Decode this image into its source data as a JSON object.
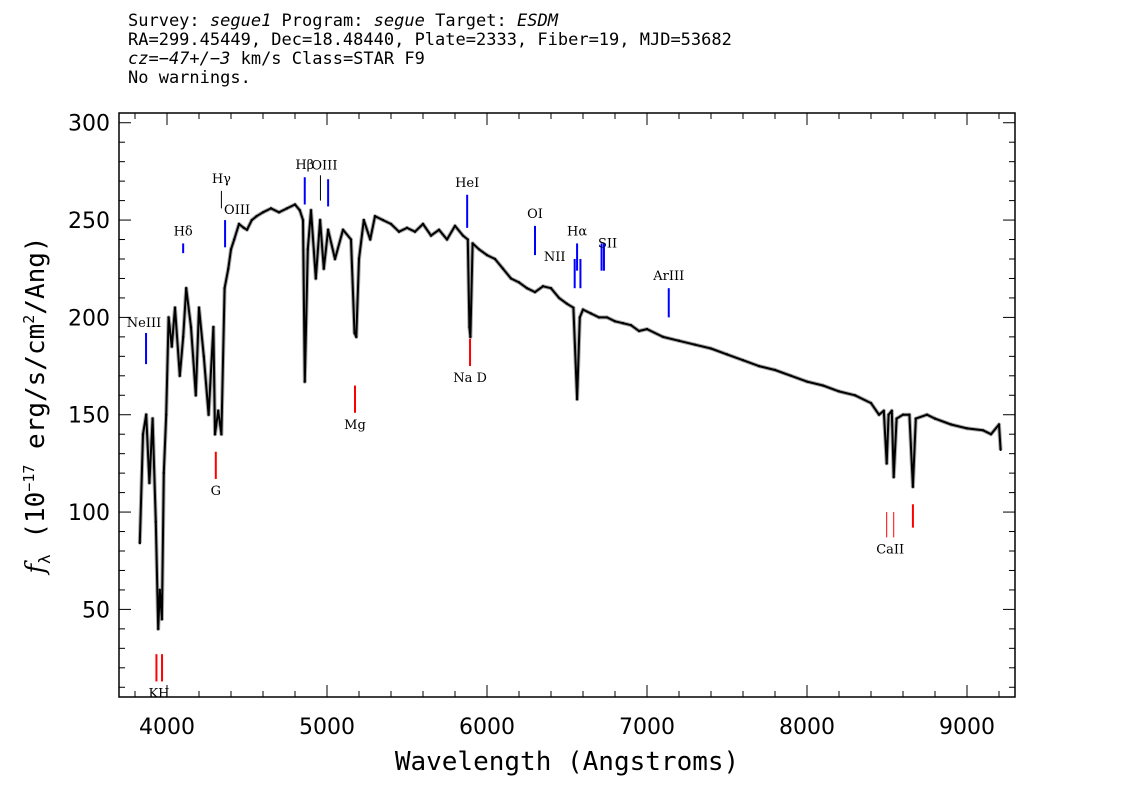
{
  "header": {
    "line1": {
      "survey_label": "Survey: ",
      "survey": "segue1",
      "program_label": " Program: ",
      "program": "segue",
      "target_label": " Target: ",
      "target": "ESDM"
    },
    "line2": "RA=299.45449, Dec=18.48440, Plate=2333, Fiber=19, MJD=53682",
    "line3": {
      "redshift": "cz=−47+/−3",
      "rest": " km/s Class=STAR F9"
    },
    "line4": "No warnings."
  },
  "chart_data": {
    "type": "line",
    "xlabel": "Wavelength (Angstroms)",
    "ylabel": "f_λ (10^-17 erg/s/cm^2/Ang)",
    "xlim": [
      3700,
      9300
    ],
    "ylim": [
      5,
      305
    ],
    "xticks": [
      4000,
      5000,
      6000,
      7000,
      8000,
      9000
    ],
    "yticks": [
      50,
      100,
      150,
      200,
      250,
      300
    ],
    "grid": false,
    "series": [
      {
        "color": "#000000",
        "x": [
          3830,
          3850,
          3870,
          3890,
          3910,
          3930,
          3945,
          3955,
          3968,
          3980,
          3995,
          4010,
          4030,
          4050,
          4080,
          4101,
          4120,
          4150,
          4180,
          4200,
          4230,
          4260,
          4290,
          4300,
          4320,
          4340,
          4360,
          4383,
          4400,
          4420,
          4450,
          4480,
          4500,
          4530,
          4560,
          4600,
          4650,
          4700,
          4750,
          4800,
          4830,
          4850,
          4861,
          4880,
          4900,
          4930,
          4957,
          4980,
          5007,
          5050,
          5100,
          5150,
          5172,
          5183,
          5200,
          5230,
          5270,
          5300,
          5350,
          5400,
          5450,
          5500,
          5550,
          5600,
          5650,
          5700,
          5750,
          5800,
          5850,
          5880,
          5890,
          5896,
          5910,
          5950,
          6000,
          6050,
          6100,
          6150,
          6200,
          6250,
          6300,
          6350,
          6400,
          6450,
          6500,
          6540,
          6563,
          6580,
          6600,
          6650,
          6700,
          6750,
          6800,
          6850,
          6900,
          6950,
          7000,
          7100,
          7200,
          7300,
          7400,
          7500,
          7600,
          7700,
          7800,
          7900,
          8000,
          8100,
          8200,
          8300,
          8400,
          8450,
          8480,
          8498,
          8510,
          8530,
          8542,
          8560,
          8600,
          8640,
          8662,
          8680,
          8750,
          8800,
          8900,
          9000,
          9100,
          9150,
          9200,
          9210
        ],
        "values": [
          84,
          140,
          150,
          115,
          148,
          95,
          40,
          60,
          45,
          120,
          150,
          200,
          185,
          205,
          170,
          190,
          215,
          195,
          160,
          205,
          180,
          150,
          195,
          140,
          152,
          140,
          215,
          225,
          235,
          240,
          248,
          246,
          245,
          250,
          252,
          254,
          256,
          254,
          256,
          258,
          255,
          250,
          167,
          235,
          255,
          220,
          250,
          225,
          245,
          230,
          245,
          240,
          192,
          190,
          230,
          250,
          240,
          252,
          250,
          248,
          244,
          246,
          244,
          248,
          242,
          245,
          240,
          247,
          242,
          240,
          195,
          190,
          238,
          235,
          232,
          230,
          225,
          220,
          218,
          215,
          213,
          216,
          215,
          210,
          207,
          205,
          158,
          200,
          204,
          202,
          200,
          200,
          198,
          197,
          196,
          193,
          194,
          190,
          188,
          186,
          184,
          181,
          178,
          175,
          173,
          170,
          167,
          165,
          162,
          160,
          156,
          150,
          152,
          125,
          150,
          152,
          118,
          148,
          150,
          150,
          113,
          148,
          150,
          148,
          145,
          143,
          142,
          140,
          145,
          132
        ]
      }
    ],
    "annotations": {
      "emission": [
        {
          "label": "NeIII",
          "x": 3869,
          "y": [
            192,
            176
          ]
        },
        {
          "label": "Hδ",
          "x": 4101,
          "y": [
            238,
            233
          ]
        },
        {
          "label": "Hγ",
          "x": 4340,
          "y": [
            265,
            256
          ]
        },
        {
          "label": "OIII",
          "x": 4363,
          "y": [
            250,
            236
          ]
        },
        {
          "label": "Hβ",
          "x": 4861,
          "y": [
            272,
            258
          ]
        },
        {
          "label": "OIII",
          "x": 4959,
          "y": [
            273,
            260
          ]
        },
        {
          "label": "OIII",
          "x": 5007,
          "y": [
            271,
            257
          ]
        },
        {
          "label": "HeI",
          "x": 5876,
          "y": [
            263,
            246
          ]
        },
        {
          "label": "OI",
          "x": 6300,
          "y": [
            247,
            232
          ]
        },
        {
          "label": "NII",
          "x": 6548,
          "y": [
            230,
            215
          ]
        },
        {
          "label": "Hα",
          "x": 6563,
          "y": [
            238,
            224
          ]
        },
        {
          "label": "NII",
          "x": 6584,
          "y": [
            230,
            215
          ]
        },
        {
          "label": "SII",
          "x": 6716,
          "y": [
            238,
            224
          ]
        },
        {
          "label": "SII",
          "x": 6731,
          "y": [
            238,
            224
          ]
        },
        {
          "label": "ArIII",
          "x": 7136,
          "y": [
            215,
            200
          ]
        }
      ],
      "absorption": [
        {
          "label": "K",
          "x": 3934,
          "y": [
            27,
            13
          ]
        },
        {
          "label": "H",
          "x": 3969,
          "y": [
            27,
            13
          ]
        },
        {
          "label": "G",
          "x": 4305,
          "y": [
            131,
            117
          ]
        },
        {
          "label": "Mg",
          "x": 5175,
          "y": [
            165,
            151
          ]
        },
        {
          "label": "Na D",
          "x": 5894,
          "y": [
            189,
            175
          ]
        },
        {
          "label": "CaII",
          "x": 8498,
          "y": [
            100,
            87
          ]
        },
        {
          "label": "CaII",
          "x": 8542,
          "y": [
            100,
            87
          ]
        },
        {
          "label": "CaII",
          "x": 8662,
          "y": [
            104,
            92
          ]
        }
      ],
      "label_text": {
        "NeIII": "NeIII",
        "Hdelta": "Hδ",
        "Hgamma": "Hγ",
        "OIII": "OIII",
        "Hbeta": "Hβ",
        "HeI": "HeI",
        "OI": "OI",
        "NII": "NII",
        "Halpha": "Hα",
        "SII": "SII",
        "ArIII": "ArIII",
        "KH": "KH",
        "G": "G",
        "Mg": "Mg",
        "NaD": "Na D",
        "CaII": "CaII"
      }
    },
    "colors": {
      "emission": "#0000ff",
      "absorption": "#ff0000",
      "spectrum": "#000000",
      "error_band": "#aaaaaa"
    }
  }
}
